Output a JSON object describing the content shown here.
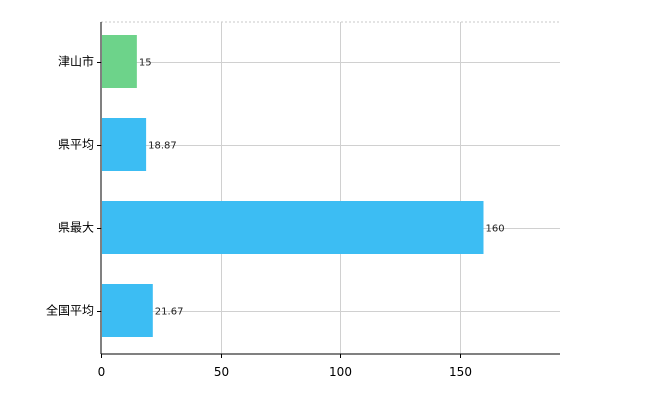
{
  "chart_data": {
    "type": "bar",
    "orientation": "horizontal",
    "categories": [
      "津山市",
      "県平均",
      "県最大",
      "全国平均"
    ],
    "values": [
      15,
      18.87,
      160,
      21.67
    ],
    "value_labels": [
      "15",
      "18.87",
      "160",
      "21.67"
    ],
    "colors": [
      "#6dd38a",
      "#3cbdf3",
      "#3cbdf3",
      "#3cbdf3"
    ],
    "xlim": [
      0,
      192
    ],
    "xticks": [
      0,
      50,
      100,
      150
    ],
    "grid": true,
    "title": "",
    "xlabel": "",
    "ylabel": ""
  }
}
